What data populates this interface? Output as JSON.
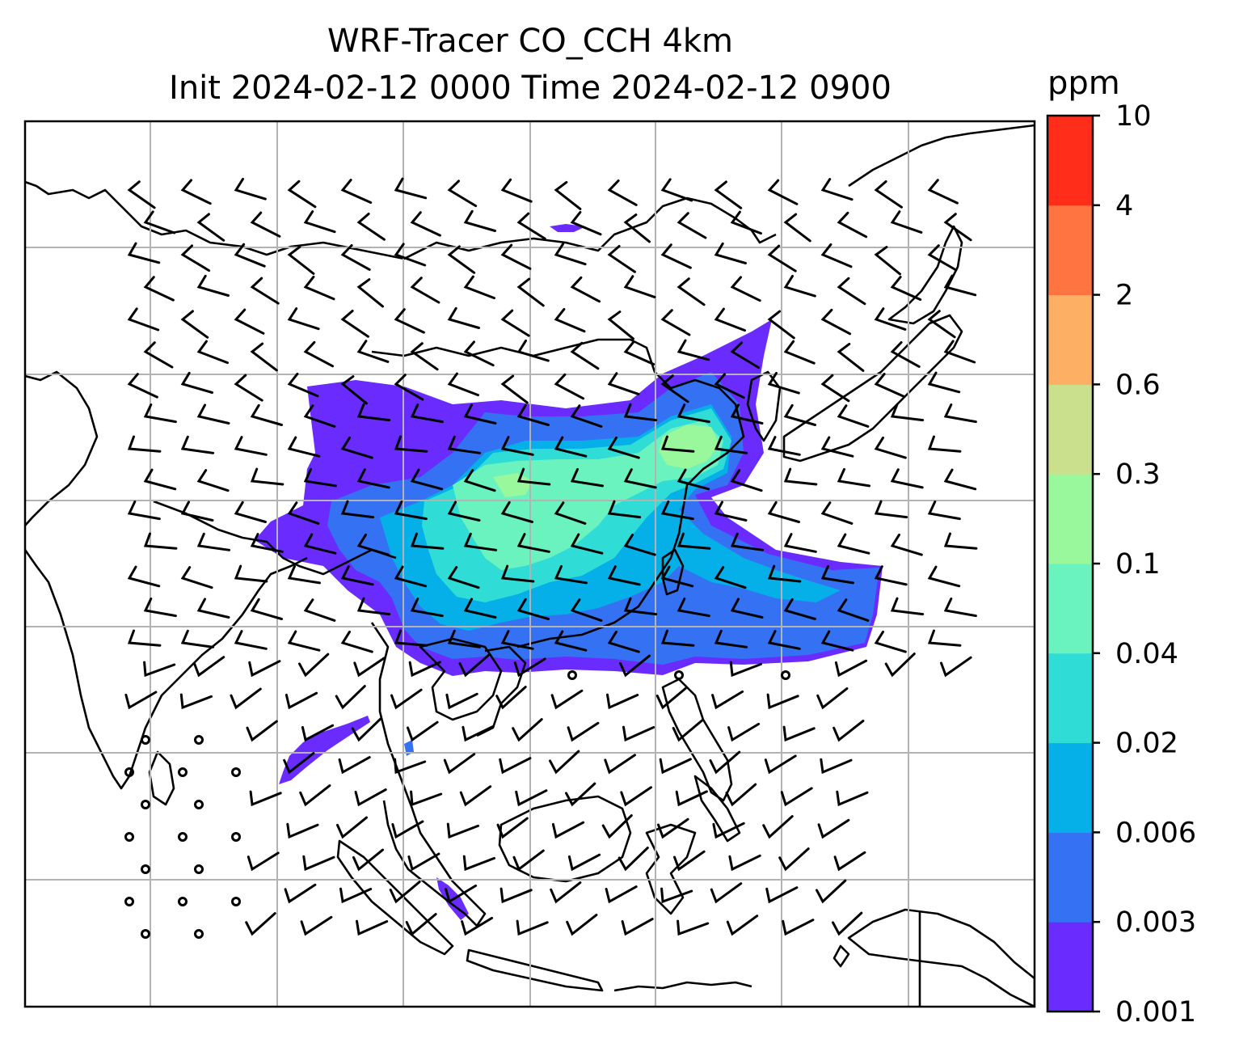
{
  "title": {
    "line1": "WRF-Tracer CO_CCH 4km",
    "line2": "Init 2024-02-12 0000 Time 2024-02-12 0900"
  },
  "colorbar": {
    "units": "ppm",
    "levels": [
      {
        "label": "0.001",
        "color": "#6a2bff"
      },
      {
        "label": "0.003",
        "color": "#3572f3"
      },
      {
        "label": "0.006",
        "color": "#05b0e8"
      },
      {
        "label": "0.02",
        "color": "#2fdcd6"
      },
      {
        "label": "0.04",
        "color": "#6af3bf"
      },
      {
        "label": "0.1",
        "color": "#98f89b"
      },
      {
        "label": "0.3",
        "color": "#cbe08c"
      },
      {
        "label": "0.6",
        "color": "#fdb063"
      },
      {
        "label": "2",
        "color": "#ff7440"
      },
      {
        "label": "4",
        "color": "#ff2d1a"
      },
      {
        "label": "10",
        "color": null
      }
    ]
  },
  "map": {
    "gridlines": true,
    "grid_color": "#b3b3b3",
    "coastline_color": "#000000",
    "barb_color": "#000000"
  }
}
